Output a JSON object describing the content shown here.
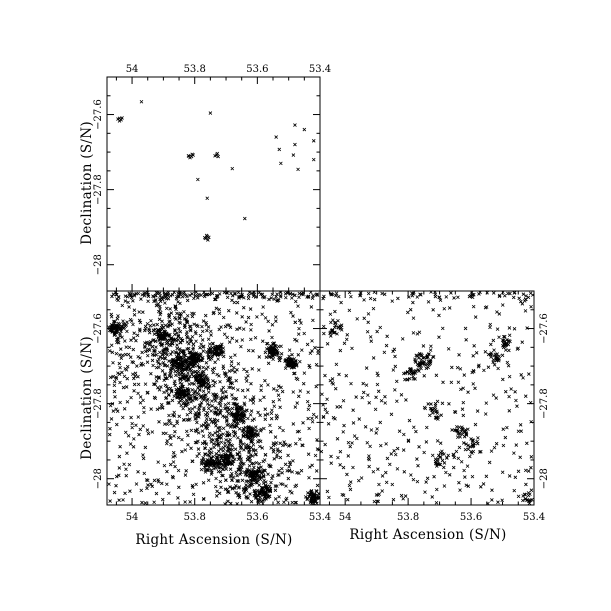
{
  "chart_data": [
    {
      "id": "panel-top-left",
      "type": "scatter",
      "title": "",
      "xlabel": "",
      "ylabel": "Declination (S/N)",
      "x_ticks_top": [
        "54",
        "53.8",
        "53.6",
        "53.4"
      ],
      "y_ticks_left": [
        "−27.6",
        "−27.8",
        "−28"
      ],
      "xlim": [
        54.08,
        53.4
      ],
      "ylim": [
        -28.07,
        -27.5
      ],
      "points": [
        [
          54.04,
          -27.61
        ],
        [
          54.035,
          -27.614
        ],
        [
          54.04,
          -27.617
        ],
        [
          54.032,
          -27.609
        ],
        [
          54.045,
          -27.612
        ],
        [
          53.97,
          -27.566
        ],
        [
          53.75,
          -27.596
        ],
        [
          53.48,
          -27.628
        ],
        [
          53.45,
          -27.64
        ],
        [
          53.42,
          -27.67
        ],
        [
          53.42,
          -27.72
        ],
        [
          53.82,
          -27.71
        ],
        [
          53.81,
          -27.712
        ],
        [
          53.805,
          -27.708
        ],
        [
          53.815,
          -27.715
        ],
        [
          53.808,
          -27.706
        ],
        [
          53.818,
          -27.711
        ],
        [
          53.73,
          -27.708
        ],
        [
          53.725,
          -27.712
        ],
        [
          53.735,
          -27.71
        ],
        [
          53.728,
          -27.704
        ],
        [
          53.54,
          -27.66
        ],
        [
          53.48,
          -27.68
        ],
        [
          53.53,
          -27.693
        ],
        [
          53.485,
          -27.708
        ],
        [
          53.525,
          -27.73
        ],
        [
          53.47,
          -27.746
        ],
        [
          53.68,
          -27.744
        ],
        [
          53.79,
          -27.773
        ],
        [
          53.76,
          -27.823
        ],
        [
          53.64,
          -27.877
        ],
        [
          53.76,
          -27.925
        ],
        [
          53.765,
          -27.93
        ],
        [
          53.758,
          -27.934
        ],
        [
          53.762,
          -27.922
        ],
        [
          53.768,
          -27.928
        ],
        [
          53.755,
          -27.927
        ]
      ]
    },
    {
      "id": "panel-bottom-left",
      "type": "scatter",
      "title": "",
      "xlabel": "Right Ascension (S/N)",
      "ylabel": "Declination (S/N)",
      "x_ticks_bottom": [
        "54",
        "53.8",
        "53.6",
        "53.4"
      ],
      "y_ticks_left": [
        "−27.6",
        "−27.8",
        "−28"
      ],
      "xlim": [
        54.08,
        53.4
      ],
      "ylim": [
        -28.07,
        -27.5
      ],
      "density": "very dense field of x markers with clumps near the left edge, centre-left and a broad band running to the lower middle",
      "clumps": [
        {
          "ra": 54.05,
          "dec": -27.6
        },
        {
          "ra": 53.9,
          "dec": -27.62
        },
        {
          "ra": 53.85,
          "dec": -27.69
        },
        {
          "ra": 53.8,
          "dec": -27.68
        },
        {
          "ra": 53.78,
          "dec": -27.74
        },
        {
          "ra": 53.84,
          "dec": -27.77
        },
        {
          "ra": 53.73,
          "dec": -27.66
        },
        {
          "ra": 53.55,
          "dec": -27.66
        },
        {
          "ra": 53.49,
          "dec": -27.69
        },
        {
          "ra": 53.66,
          "dec": -27.83
        },
        {
          "ra": 53.62,
          "dec": -27.88
        },
        {
          "ra": 53.7,
          "dec": -27.95
        },
        {
          "ra": 53.75,
          "dec": -27.96
        },
        {
          "ra": 53.61,
          "dec": -27.99
        },
        {
          "ra": 53.58,
          "dec": -28.04
        },
        {
          "ra": 53.42,
          "dec": -28.05
        }
      ]
    },
    {
      "id": "panel-bottom-right",
      "type": "scatter",
      "title": "",
      "xlabel": "Right Ascension (S/N)",
      "ylabel": "",
      "x_ticks_bottom": [
        "54",
        "53.8",
        "53.6",
        "53.4"
      ],
      "y_ticks_right": [
        "−27.6",
        "−27.8",
        "−28"
      ],
      "xlim": [
        54.08,
        53.4
      ],
      "ylim": [
        -28.07,
        -27.5
      ],
      "density": "moderately dense field of x markers with compact clumps",
      "clumps": [
        {
          "ra": 54.03,
          "dec": -27.6
        },
        {
          "ra": 53.76,
          "dec": -27.69
        },
        {
          "ra": 53.79,
          "dec": -27.72
        },
        {
          "ra": 53.74,
          "dec": -27.68
        },
        {
          "ra": 53.52,
          "dec": -27.68
        },
        {
          "ra": 53.49,
          "dec": -27.64
        },
        {
          "ra": 53.72,
          "dec": -27.82
        },
        {
          "ra": 53.63,
          "dec": -27.88
        },
        {
          "ra": 53.6,
          "dec": -27.91
        },
        {
          "ra": 53.7,
          "dec": -27.95
        },
        {
          "ra": 53.41,
          "dec": -28.05
        }
      ]
    }
  ],
  "texts": {
    "xlabel_left": "Right Ascension (S/N)",
    "xlabel_right": "Right Ascension (S/N)",
    "ylabel_top": "Declination (S/N)",
    "ylabel_bottom": "Declination (S/N)"
  }
}
